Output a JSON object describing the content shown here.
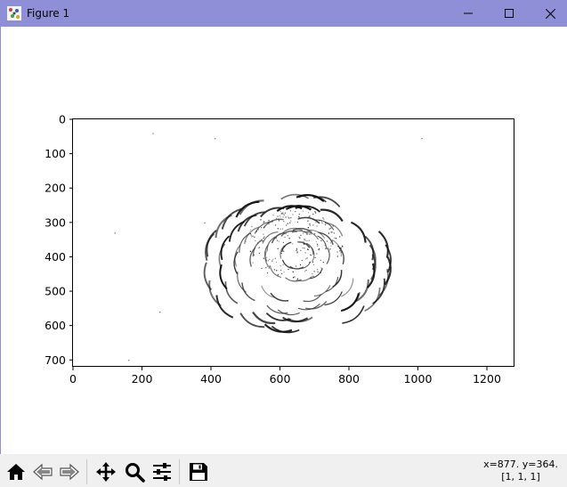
{
  "window": {
    "title": "Figure 1",
    "title_bar_color": "#8f8fd8"
  },
  "figure": {
    "x_ticks": [
      "0",
      "200",
      "400",
      "600",
      "800",
      "1000",
      "1200"
    ],
    "y_ticks": [
      "0",
      "100",
      "200",
      "300",
      "400",
      "500",
      "600",
      "700"
    ]
  },
  "chart_data": {
    "type": "image",
    "title": "",
    "xlabel": "",
    "ylabel": "",
    "xlim": [
      0,
      1280
    ],
    "ylim": [
      720,
      0
    ],
    "x_ticks": [
      0,
      200,
      400,
      600,
      800,
      1000,
      1200
    ],
    "y_ticks": [
      0,
      100,
      200,
      300,
      400,
      500,
      600,
      700
    ],
    "colormap": "gray_r",
    "description_content": "sparse dark edge strokes forming a roughly circular flower pattern"
  },
  "toolbar": {
    "buttons": [
      {
        "name": "home-button",
        "icon": "home-icon"
      },
      {
        "name": "back-button",
        "icon": "back-arrow-icon"
      },
      {
        "name": "forward-button",
        "icon": "forward-arrow-icon"
      },
      {
        "name": "pan-button",
        "icon": "move-icon"
      },
      {
        "name": "zoom-button",
        "icon": "magnifier-icon"
      },
      {
        "name": "subplots-button",
        "icon": "sliders-icon"
      },
      {
        "name": "save-button",
        "icon": "floppy-disk-icon"
      }
    ]
  },
  "status": {
    "coords": "x=877. y=364.",
    "pixel_value": "[1, 1, 1]"
  }
}
